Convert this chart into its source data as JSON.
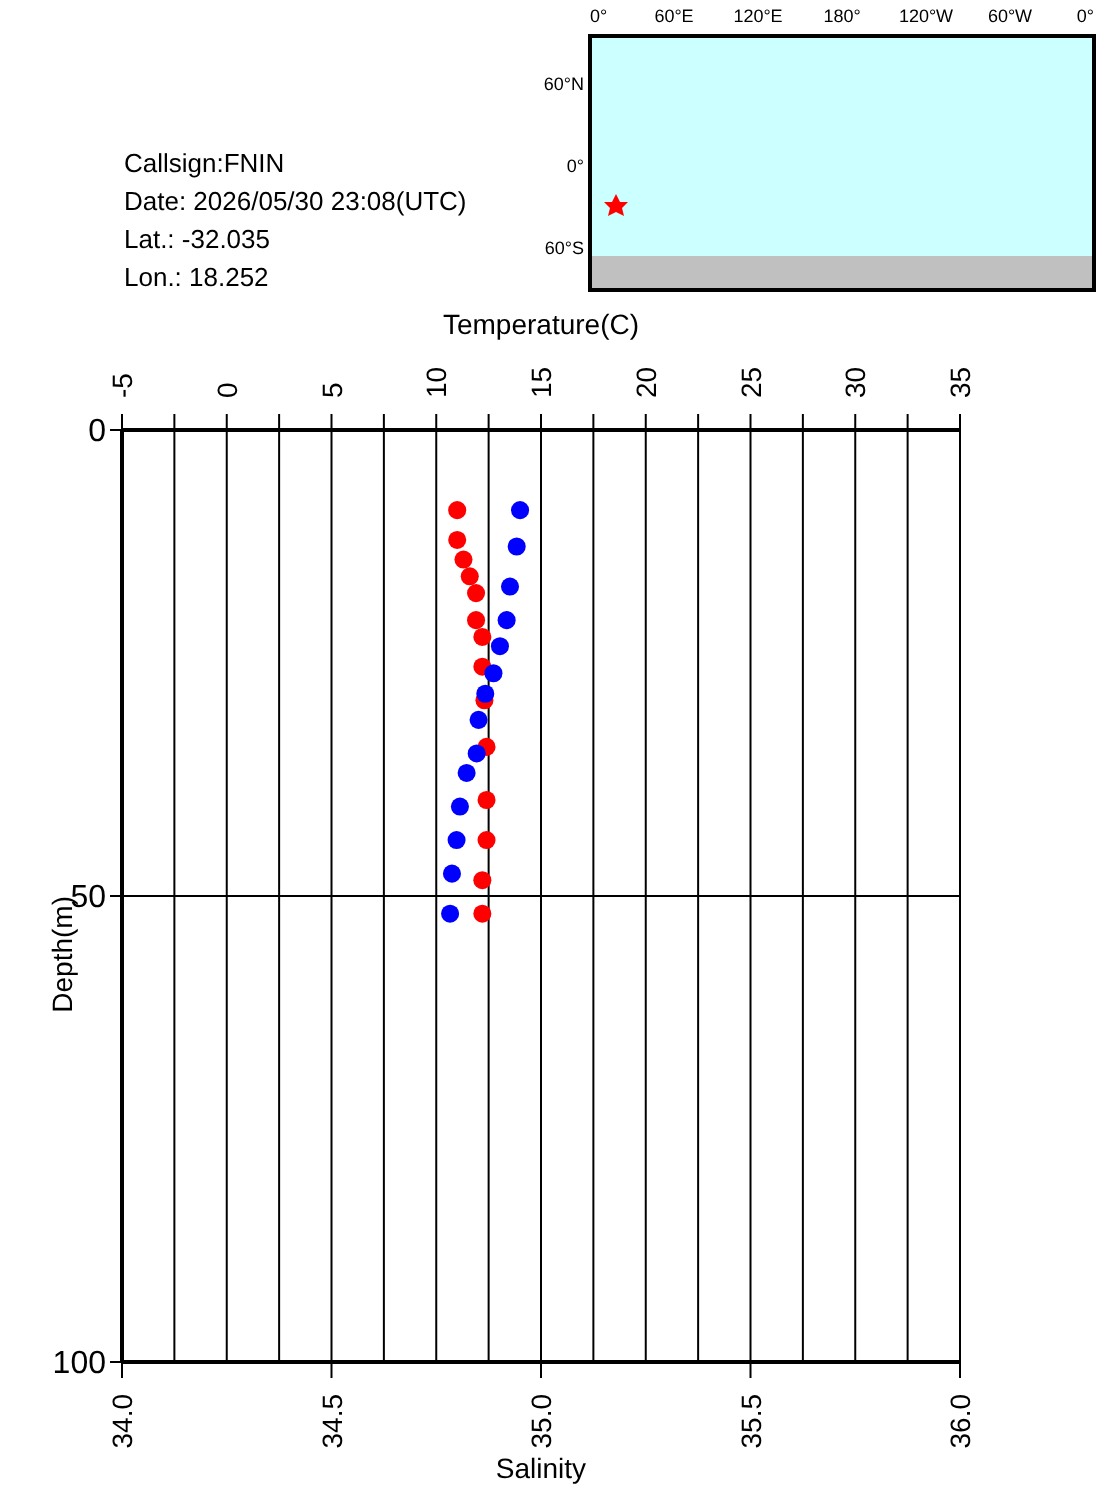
{
  "chart_data": {
    "type": "scatter",
    "xlabel": "Salinity",
    "x2label": "Temperature(C)",
    "ylabel": "Depth(m)",
    "xlim": [
      34.0,
      36.0
    ],
    "xticks": [
      {
        "value": 34.0,
        "label": "34.0"
      },
      {
        "value": 34.5,
        "label": "34.5"
      },
      {
        "value": 35.0,
        "label": "35.0"
      },
      {
        "value": 35.5,
        "label": "35.5"
      },
      {
        "value": 36.0,
        "label": "36.0"
      }
    ],
    "x2lim": [
      -5,
      35
    ],
    "x2ticks": [
      -5,
      {
        "value": -2.5,
        "label": null
      },
      0,
      {
        "value": 2.5,
        "label": null
      },
      5,
      {
        "value": 7.5,
        "label": null
      },
      10,
      {
        "value": 12.5,
        "label": null
      },
      15,
      {
        "value": 17.5,
        "label": null
      },
      20,
      {
        "value": 22.5,
        "label": null
      },
      25,
      {
        "value": 27.5,
        "label": null
      },
      30,
      {
        "value": 32.5,
        "label": null
      },
      35
    ],
    "ylim": [
      100,
      0
    ],
    "yticks": [
      0,
      50,
      100
    ],
    "grid": true,
    "marker": "circle",
    "series": [
      {
        "color": "#0000ff",
        "axis": "x2",
        "x": [
          14.0,
          13.84,
          13.52,
          13.36,
          13.04,
          12.73,
          12.34,
          12.02,
          11.93,
          11.45,
          11.13,
          10.97,
          10.75,
          10.66
        ],
        "values": [
          8.6,
          12.5,
          16.8,
          20.4,
          23.2,
          26.1,
          28.3,
          31.1,
          34.7,
          36.8,
          40.4,
          44.0,
          47.6,
          51.9
        ]
      },
      {
        "color": "#ff0000",
        "x": [
          34.8,
          34.8,
          34.815,
          34.83,
          34.845,
          34.845,
          34.86,
          34.86,
          34.865,
          34.87,
          34.87,
          34.87,
          34.86,
          34.86
        ],
        "values": [
          8.6,
          11.8,
          13.9,
          15.7,
          17.5,
          20.4,
          22.2,
          25.4,
          29.0,
          34.0,
          39.7,
          44.0,
          48.3,
          51.9
        ]
      }
    ],
    "annotations": [
      "Callsign:FNIN",
      "Date:  2026/05/30 23:08(UTC)",
      "Lat.:  -32.035",
      "Lon.:   18.252",
      "0°",
      "60°E",
      "120°E",
      "180°",
      "120°W",
      "60°W",
      "0°",
      "60°N",
      "0°",
      "60°S"
    ]
  }
}
